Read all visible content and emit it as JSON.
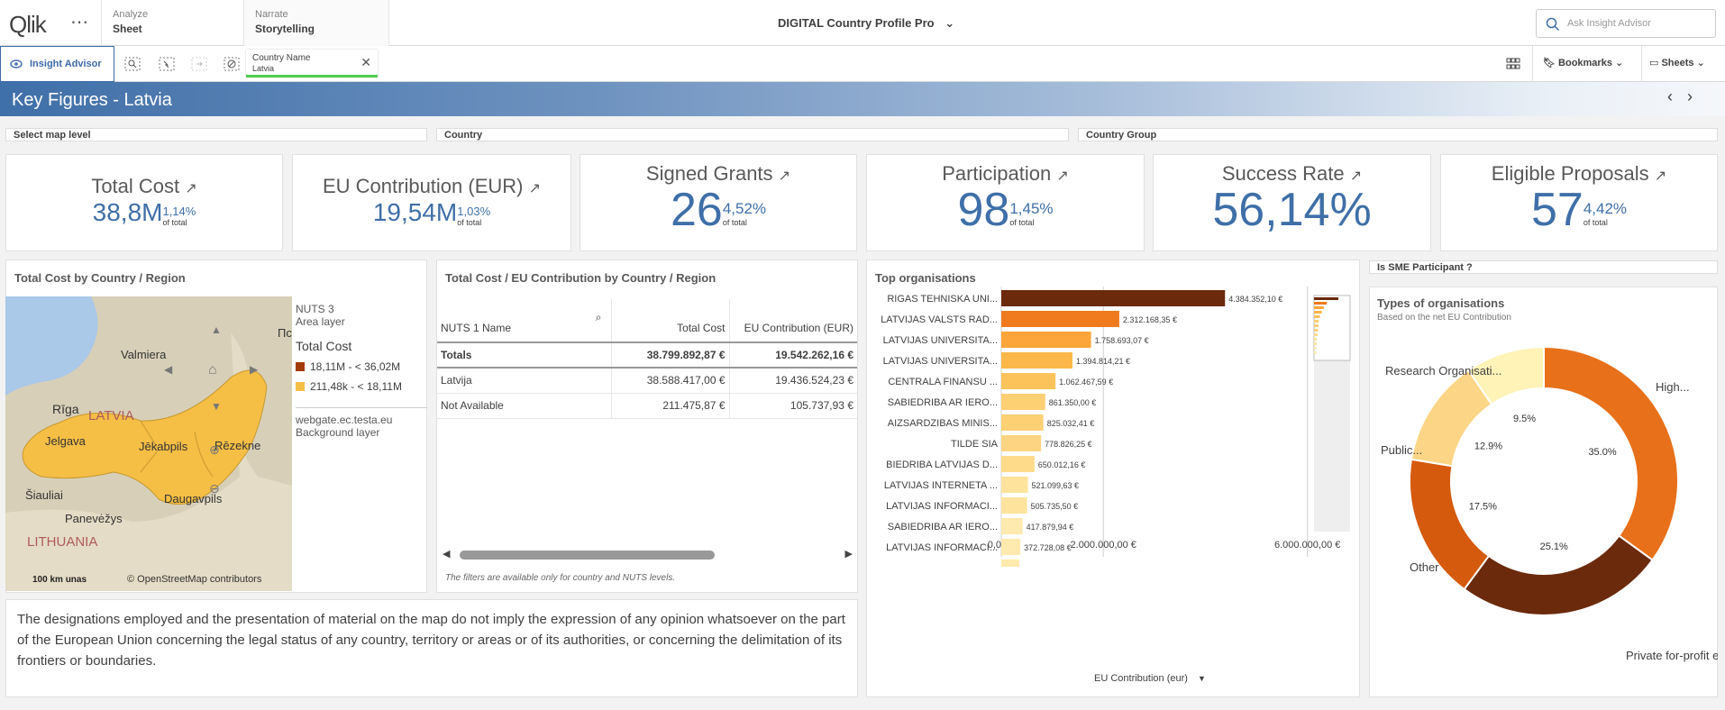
{
  "topbar": {
    "logo": "Qlik",
    "tabs": [
      {
        "small": "Analyze",
        "big": "Sheet"
      },
      {
        "small": "Narrate",
        "big": "Storytelling"
      }
    ],
    "app_title": "DIGITAL Country Profile Pro",
    "search_placeholder": "Ask Insight Advisor"
  },
  "toolbar": {
    "insight_advisor": "Insight Advisor",
    "filter_name": "Country Name",
    "filter_value": "Latvia",
    "bookmarks": "Bookmarks",
    "sheets": "Sheets"
  },
  "banner": {
    "title": "Key Figures - Latvia"
  },
  "filters": [
    "Select map level",
    "Country",
    "Country Group"
  ],
  "kpis": [
    {
      "title": "Total Cost",
      "value": "38,8M",
      "pct": "1,14%",
      "of": "of total"
    },
    {
      "title": "EU Contribution (EUR)",
      "value": "19,54M",
      "pct": "1,03%",
      "of": "of total"
    },
    {
      "title": "Signed Grants",
      "value": "26",
      "pct": "4,52%",
      "of": "of total"
    },
    {
      "title": "Participation",
      "value": "98",
      "pct": "1,45%",
      "of": "of total"
    },
    {
      "title": "Success Rate",
      "value": "56,14%",
      "pct": "",
      "of": ""
    },
    {
      "title": "Eligible Proposals",
      "value": "57",
      "pct": "4,42%",
      "of": "of total"
    }
  ],
  "map_panel": {
    "title": "Total Cost by Country / Region",
    "labels": [
      "Valmiera",
      "Rīga",
      "LATVIA",
      "Jelgava",
      "Jēkabpils",
      "Rēzekne",
      "Daugavpils",
      "Šiauliai",
      "Panevėžys",
      "LITHUANIA",
      "Пско"
    ],
    "scale": "100 km",
    "scale_suffix": "unas",
    "attribution": "© OpenStreetMap contributors",
    "legend": {
      "layer": "NUTS 3",
      "layer_type": "Area layer",
      "measure": "Total Cost",
      "items": [
        {
          "label": "18,11M - < 36,02M",
          "color": "#a33a0a"
        },
        {
          "label": "211,48k - < 18,11M",
          "color": "#f5be45"
        }
      ],
      "bg_source": "webgate.ec.testa.eu",
      "bg_type": "Background layer"
    }
  },
  "table_panel": {
    "title": "Total Cost / EU Contribution by Country / Region",
    "columns": [
      "NUTS 1 Name",
      "Total Cost",
      "EU Contribution (EUR)"
    ],
    "totals": [
      "Totals",
      "38.799.892,87 €",
      "19.542.262,16 €"
    ],
    "rows": [
      [
        "Latvija",
        "38.588.417,00 €",
        "19.436.524,23 €"
      ],
      [
        "Not Available",
        "211.475,87 €",
        "105.737,93 €"
      ]
    ],
    "footnote": "The filters are available only for country and NUTS levels."
  },
  "org_panel": {
    "title": "Top organisations",
    "xaxis_label": "EU Contribution (eur)",
    "ticks": [
      "0,00 €",
      "2.000.000,00 €",
      "6.000.000,00 €"
    ]
  },
  "chart_data": [
    {
      "type": "bar",
      "title": "Top organisations",
      "xlabel": "EU Contribution (eur)",
      "categories": [
        "RIGAS TEHNISKA UNI...",
        "LATVIJAS VALSTS RAD...",
        "LATVIJAS UNIVERSITA...",
        "LATVIJAS UNIVERSITA...",
        "CENTRALA FINANSU ...",
        "SABIEDRIBA AR IERO...",
        "AIZSARDZIBAS MINIS...",
        "TILDE SIA",
        "BIEDRIBA LATVIJAS D...",
        "LATVIJAS INTERNETA ...",
        "LATVIJAS INFORMACI...",
        "SABIEDRIBA AR IERO...",
        "LATVIJAS INFORMACI..."
      ],
      "values": [
        4384352.1,
        2312168.35,
        1758693.07,
        1394814.21,
        1062467.59,
        861350.0,
        825032.41,
        778826.25,
        650012.16,
        521099.63,
        505735.5,
        417879.94,
        372728.08
      ],
      "value_labels": [
        "4.384.352,10 €",
        "2.312.168,35 €",
        "1.758.693,07 €",
        "1.394.814,21 €",
        "1.062.467,59 €",
        "861.350,00 €",
        "825.032,41 €",
        "778.826,25 €",
        "650.012,16 €",
        "521.099,63 €",
        "505.735,50 €",
        "417.879,94 €",
        "372.728,08 €"
      ],
      "xlim": [
        0,
        6500000
      ]
    },
    {
      "type": "pie",
      "title": "Types of organisations",
      "subtitle": "Based on the net EU Contribution",
      "categories": [
        "High...",
        "Private for-profit entities...",
        "Other",
        "Public...",
        "Research Organisati..."
      ],
      "values": [
        35.0,
        25.1,
        17.5,
        12.9,
        9.5
      ],
      "value_labels": [
        "35.0%",
        "25.1%",
        "17.5%",
        "12.9%",
        "9.5%"
      ],
      "colors": [
        "#e8701a",
        "#6b2a0c",
        "#d55a0d",
        "#fdd586",
        "#fff3b8"
      ]
    }
  ],
  "sme": {
    "title": "Is SME Participant ?"
  },
  "disclaimer": "The designations employed and the presentation of material on the map do not imply the expression of any opinion whatsoever on the part of the European Union concerning the legal status of any country, territory or areas or of its authorities, or concerning the delimitation of its frontiers or boundaries."
}
